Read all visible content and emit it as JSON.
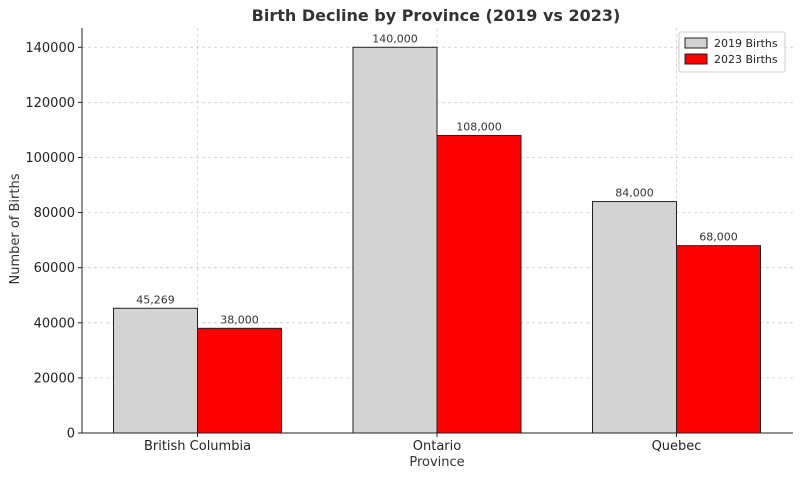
{
  "chart_data": {
    "type": "bar",
    "title": "Birth Decline by Province (2019 vs 2023)",
    "xlabel": "Province",
    "ylabel": "Number of Births",
    "categories": [
      "British Columbia",
      "Ontario",
      "Quebec"
    ],
    "series": [
      {
        "name": "2019 Births",
        "color": "#d3d3d3",
        "values": [
          45269,
          140000,
          84000
        ],
        "labels": [
          "45,269",
          "140,000",
          "84,000"
        ]
      },
      {
        "name": "2023 Births",
        "color": "#ff0000",
        "values": [
          38000,
          108000,
          68000
        ],
        "labels": [
          "38,000",
          "108,000",
          "68,000"
        ]
      }
    ],
    "ylim": [
      0,
      147000
    ],
    "yticks": [
      0,
      20000,
      40000,
      60000,
      80000,
      100000,
      120000,
      140000
    ],
    "ytick_labels": [
      "0",
      "20000",
      "40000",
      "60000",
      "80000",
      "100000",
      "120000",
      "140000"
    ],
    "grid": true,
    "legend_position": "top-right"
  }
}
